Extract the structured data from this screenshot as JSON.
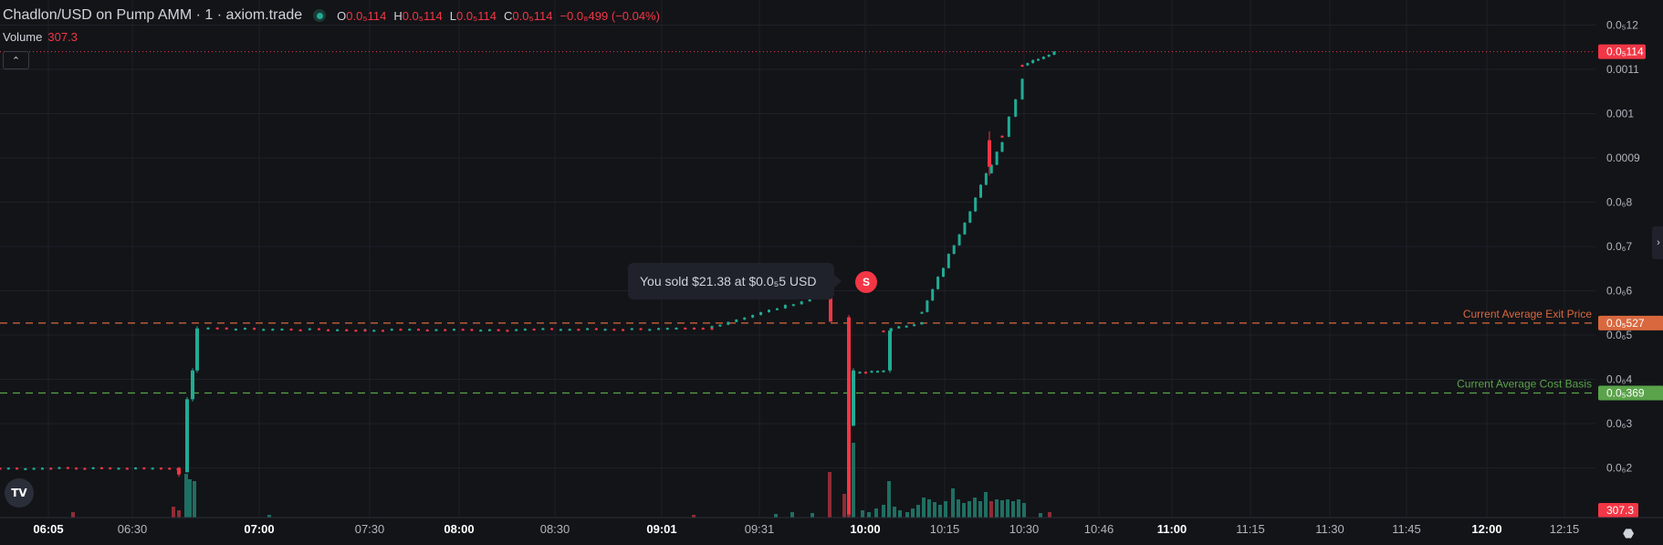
{
  "header": {
    "title": "Chadlon/USD on Pump AMM · 1 · axiom.trade",
    "open_key": "O",
    "open_val": "0.0₅114",
    "high_key": "H",
    "high_val": "0.0₅114",
    "low_key": "L",
    "low_val": "0.0₅114",
    "close_key": "C",
    "close_val": "0.0₅114",
    "change": "−0.0₈499 (−0.04%)"
  },
  "volume": {
    "label": "Volume",
    "value": "307.3"
  },
  "tooltip": {
    "text": "You sold $21.38 at $0.0₅5 USD",
    "badge": "S"
  },
  "logo": {
    "text": "TV"
  },
  "icons": {
    "collapse": "chevron-up-icon",
    "logo": "tradingview-logo-icon",
    "expand": "chevron-right-icon",
    "settings": "gear-icon"
  },
  "colors": {
    "up": "#22ab94",
    "down": "#f23645",
    "exit": "#d9683e",
    "cost": "#5aa34a",
    "background": "#131418"
  },
  "chart_data": {
    "type": "candlestick",
    "y_tick_labels": [
      "0.0₅12",
      "0.0011",
      "0.001",
      "0.0009",
      "0.0₆8",
      "0.0₆7",
      "0.0₆6",
      "0.0₆5",
      "0.0₆4",
      "0.0₆3",
      "0.0₆2"
    ],
    "y_tick_values": [
      12,
      11,
      10,
      9,
      8,
      7,
      6,
      5,
      4,
      3,
      2
    ],
    "x_tick_labels": [
      "06:05",
      "06:30",
      "07:00",
      "07:30",
      "08:00",
      "08:30",
      "09:01",
      "09:31",
      "10:00",
      "10:15",
      "10:30",
      "10:46",
      "11:00",
      "11:15",
      "11:30",
      "11:45",
      "12:00",
      "12:15"
    ],
    "x_tick_bold": [
      "06:05",
      "07:00",
      "08:00",
      "09:01",
      "10:00",
      "11:00",
      "12:00"
    ],
    "last_price": {
      "label": "0.0₅114",
      "value": 11.4
    },
    "volume_label": "307.3",
    "horizontal_lines": [
      {
        "name": "Current Average Exit Price",
        "value": 5.27,
        "label": "0.0₅527",
        "color": "#d9683e"
      },
      {
        "name": "Current Average Cost Basis",
        "value": 3.69,
        "label": "0.0₅369",
        "color": "#5aa34a"
      }
    ],
    "segments": [
      {
        "t0": 0,
        "t1": 195,
        "v0": 2.0,
        "v1": 2.0,
        "n": 22,
        "noise": 0.02
      },
      {
        "t0": 228,
        "t1": 400,
        "v0": 5.15,
        "v1": 5.12,
        "n": 18,
        "noise": 0.02
      },
      {
        "t0": 400,
        "t1": 780,
        "v0": 5.12,
        "v1": 5.15,
        "n": 40,
        "noise": 0.02
      },
      {
        "t0": 780,
        "t1": 905,
        "v0": 5.2,
        "v1": 5.92,
        "n": 15,
        "noise": 0.02
      },
      {
        "t0": 942,
        "t1": 968,
        "v0": 4.15,
        "v1": 4.2,
        "n": 5,
        "noise": 0.02
      },
      {
        "t0": 968,
        "t1": 1010,
        "v0": 5.1,
        "v1": 5.3,
        "n": 6,
        "noise": 0.02
      },
      {
        "t0": 1010,
        "t1": 1098,
        "v0": 5.5,
        "v1": 9.4,
        "n": 16,
        "noise": 0.05
      },
      {
        "t0": 1098,
        "t1": 1120,
        "v0": 9.5,
        "v1": 10.8,
        "n": 4,
        "noise": 0.05
      },
      {
        "t0": 1120,
        "t1": 1155,
        "v0": 11.1,
        "v1": 11.4,
        "n": 7,
        "noise": 0.02
      }
    ],
    "big_candles": [
      {
        "t": 196,
        "o": 2.0,
        "c": 1.85,
        "h": 2.02,
        "l": 1.8
      },
      {
        "t": 205,
        "o": 1.9,
        "c": 3.55,
        "h": 3.6,
        "l": 1.9
      },
      {
        "t": 211,
        "o": 3.55,
        "c": 4.2,
        "h": 4.25,
        "l": 3.5
      },
      {
        "t": 216,
        "o": 4.2,
        "c": 5.15,
        "h": 5.2,
        "l": 4.15
      },
      {
        "t": 910,
        "o": 6.0,
        "c": 5.3,
        "h": 6.05,
        "l": 5.3
      },
      {
        "t": 930,
        "o": 5.4,
        "c": 0.95,
        "h": 5.45,
        "l": 0.95
      },
      {
        "t": 935,
        "o": 2.95,
        "c": 4.2,
        "h": 4.25,
        "l": 2.95
      },
      {
        "t": 975,
        "o": 4.2,
        "c": 5.1,
        "h": 5.15,
        "l": 4.15
      },
      {
        "t": 1084,
        "o": 9.4,
        "c": 8.8,
        "h": 9.6,
        "l": 8.6
      }
    ],
    "volume_bars": [
      {
        "t": 80,
        "v": 6,
        "up": false
      },
      {
        "t": 190,
        "v": 12,
        "up": false
      },
      {
        "t": 196,
        "v": 8,
        "up": false
      },
      {
        "t": 204,
        "v": 48,
        "up": true
      },
      {
        "t": 208,
        "v": 42,
        "up": true
      },
      {
        "t": 213,
        "v": 40,
        "up": true
      },
      {
        "t": 295,
        "v": 3,
        "up": true
      },
      {
        "t": 760,
        "v": 3,
        "up": false
      },
      {
        "t": 850,
        "v": 4,
        "up": true
      },
      {
        "t": 868,
        "v": 6,
        "up": true
      },
      {
        "t": 890,
        "v": 5,
        "up": true
      },
      {
        "t": 909,
        "v": 50,
        "up": false
      },
      {
        "t": 925,
        "v": 26,
        "up": false
      },
      {
        "t": 930,
        "v": 22,
        "up": false
      },
      {
        "t": 935,
        "v": 82,
        "up": true
      },
      {
        "t": 945,
        "v": 8,
        "up": true
      },
      {
        "t": 952,
        "v": 6,
        "up": true
      },
      {
        "t": 960,
        "v": 10,
        "up": true
      },
      {
        "t": 968,
        "v": 14,
        "up": true
      },
      {
        "t": 974,
        "v": 40,
        "up": true
      },
      {
        "t": 980,
        "v": 12,
        "up": true
      },
      {
        "t": 986,
        "v": 8,
        "up": true
      },
      {
        "t": 994,
        "v": 6,
        "up": true
      },
      {
        "t": 1000,
        "v": 10,
        "up": true
      },
      {
        "t": 1006,
        "v": 14,
        "up": true
      },
      {
        "t": 1012,
        "v": 22,
        "up": true
      },
      {
        "t": 1018,
        "v": 20,
        "up": true
      },
      {
        "t": 1024,
        "v": 17,
        "up": true
      },
      {
        "t": 1030,
        "v": 14,
        "up": true
      },
      {
        "t": 1036,
        "v": 18,
        "up": true
      },
      {
        "t": 1044,
        "v": 32,
        "up": true
      },
      {
        "t": 1050,
        "v": 20,
        "up": true
      },
      {
        "t": 1056,
        "v": 16,
        "up": true
      },
      {
        "t": 1062,
        "v": 18,
        "up": true
      },
      {
        "t": 1068,
        "v": 22,
        "up": true
      },
      {
        "t": 1074,
        "v": 18,
        "up": true
      },
      {
        "t": 1080,
        "v": 28,
        "up": true
      },
      {
        "t": 1086,
        "v": 18,
        "up": false
      },
      {
        "t": 1092,
        "v": 20,
        "up": true
      },
      {
        "t": 1098,
        "v": 19,
        "up": true
      },
      {
        "t": 1104,
        "v": 20,
        "up": true
      },
      {
        "t": 1110,
        "v": 18,
        "up": true
      },
      {
        "t": 1116,
        "v": 20,
        "up": true
      },
      {
        "t": 1122,
        "v": 16,
        "up": true
      },
      {
        "t": 1140,
        "v": 5,
        "up": true
      },
      {
        "t": 1150,
        "v": 6,
        "up": false
      }
    ]
  }
}
